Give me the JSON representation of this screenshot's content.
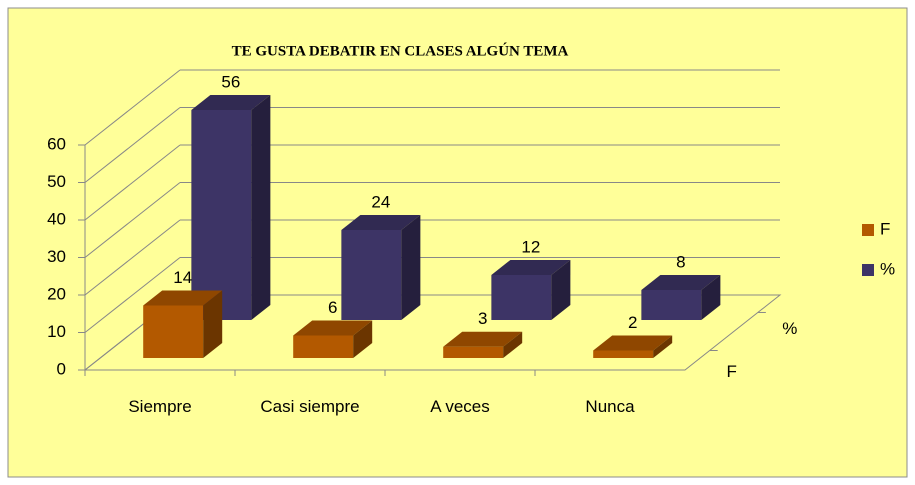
{
  "chart_data": {
    "type": "bar3d",
    "title": "TE GUSTA DEBATIR EN CLASES ALGÚN TEMA",
    "categories": [
      "Siempre",
      "Casi siempre",
      "A veces",
      "Nunca"
    ],
    "series": [
      {
        "name": "F",
        "color": "#b35900",
        "values": [
          14,
          6,
          3,
          2
        ]
      },
      {
        "name": "%",
        "color": "#3d3466",
        "values": [
          56,
          24,
          12,
          8
        ]
      }
    ],
    "ylim": [
      0,
      60
    ],
    "yticks": [
      0,
      10,
      20,
      30,
      40,
      50,
      60
    ],
    "grid": true,
    "legend": "right"
  }
}
